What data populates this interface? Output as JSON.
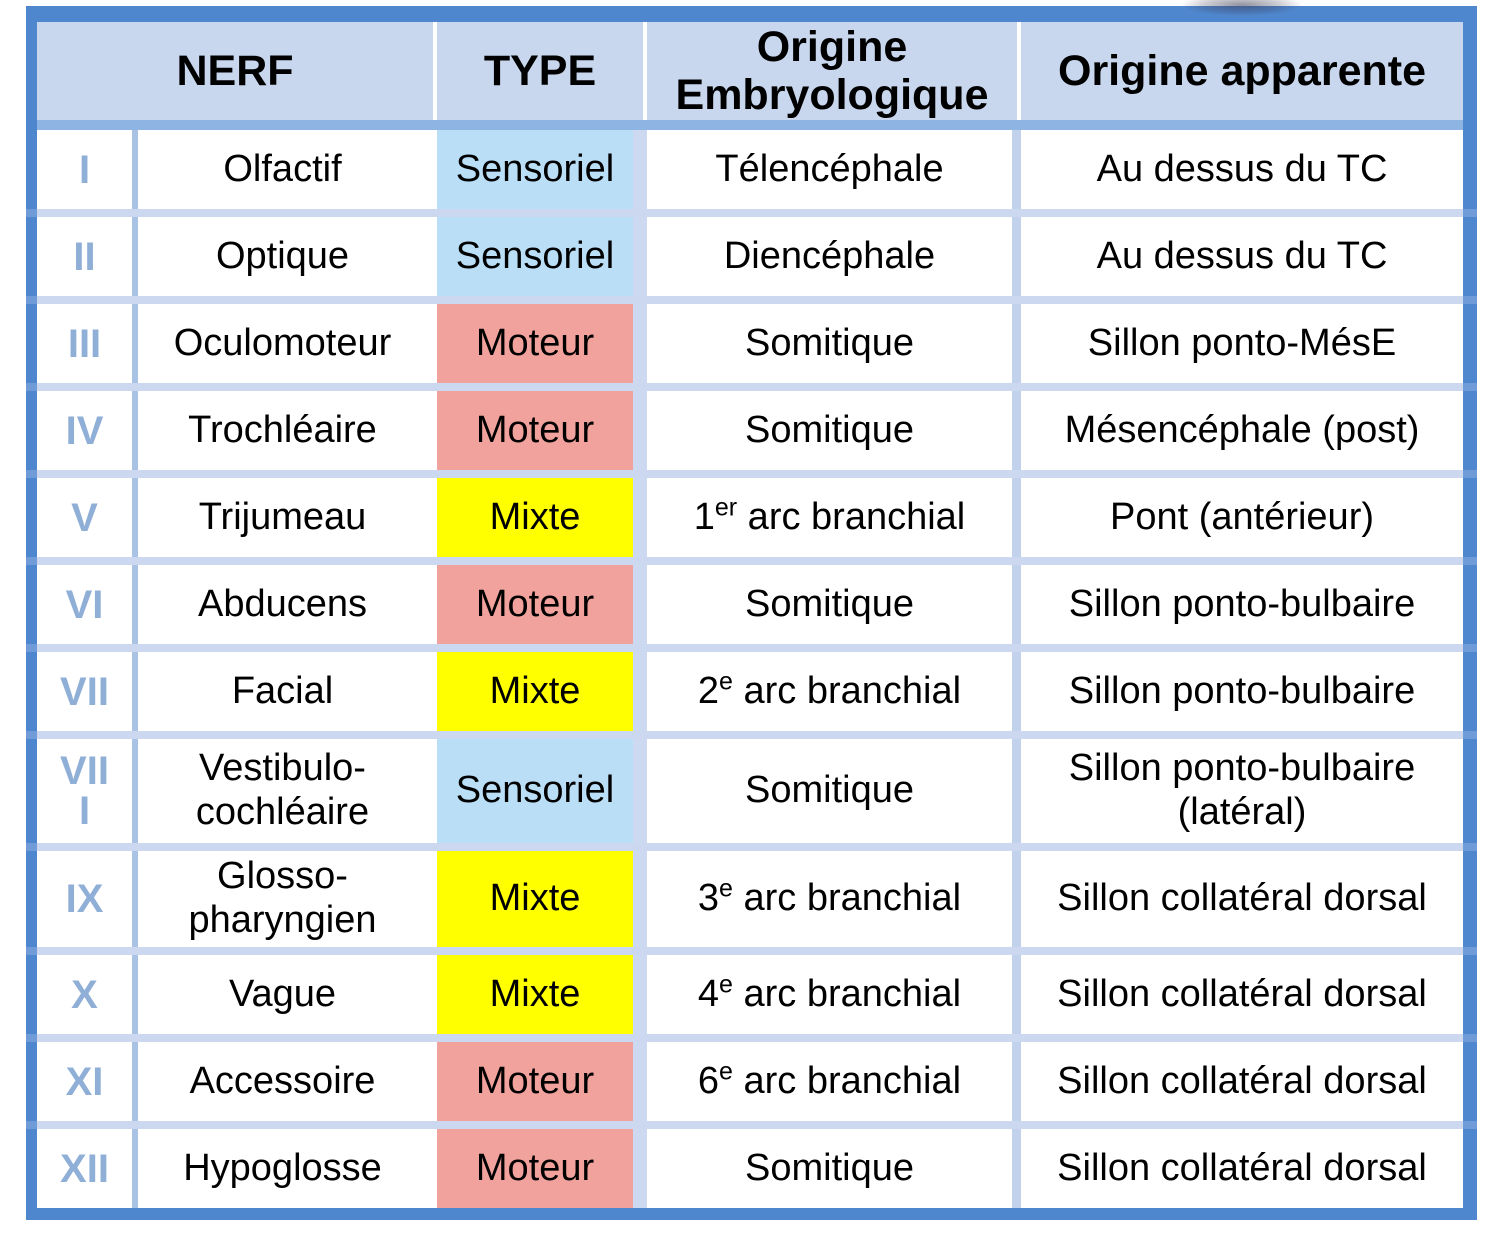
{
  "palette": {
    "outer_border": "#4f87ce",
    "header_bg": "#c8d6ee",
    "header_underline_band": "#8db4e2",
    "row_gap": "#cbd8ef",
    "numeral_column_divider": "#a9c3e5",
    "numeral_text": "#8fafd7",
    "type_sensoriel_bg": "#b9def6",
    "type_moteur_bg": "#f2a29c",
    "type_mixte_bg": "#ffff00",
    "cell_bg": "#ffffff",
    "text": "#000000"
  },
  "header": {
    "nerf": "NERF",
    "type": "TYPE",
    "origine_embryologique": "Origine Embryologique",
    "origine_apparente": "Origine apparente"
  },
  "rows": [
    {
      "numeral": "I",
      "nerf": "Olfactif",
      "type": "Sensoriel",
      "embryo": "Télencéphale",
      "apparente": "Au dessus du TC"
    },
    {
      "numeral": "II",
      "nerf": "Optique",
      "type": "Sensoriel",
      "embryo": "Diencéphale",
      "apparente": "Au dessus du TC"
    },
    {
      "numeral": "III",
      "nerf": "Oculomoteur",
      "type": "Moteur",
      "embryo": "Somitique",
      "apparente": "Sillon ponto-MésE"
    },
    {
      "numeral": "IV",
      "nerf": "Trochléaire",
      "type": "Moteur",
      "embryo": "Somitique",
      "apparente": "Mésencéphale (post)"
    },
    {
      "numeral": "V",
      "nerf": "Trijumeau",
      "type": "Mixte",
      "embryo_base": "1",
      "embryo_sup": "er",
      "embryo_rest": " arc branchial",
      "apparente": "Pont (antérieur)"
    },
    {
      "numeral": "VI",
      "nerf": "Abducens",
      "type": "Moteur",
      "embryo": "Somitique",
      "apparente": "Sillon ponto-bulbaire"
    },
    {
      "numeral": "VII",
      "nerf": "Facial",
      "type": "Mixte",
      "embryo_base": "2",
      "embryo_sup": "e",
      "embryo_rest": " arc branchial",
      "apparente": "Sillon ponto-bulbaire"
    },
    {
      "numeral": "VIII",
      "nerf": "Vestibulo-cochléaire",
      "type": "Sensoriel",
      "embryo": "Somitique",
      "apparente": "Sillon ponto-bulbaire (latéral)"
    },
    {
      "numeral": "IX",
      "nerf": "Glosso-pharyngien",
      "type": "Mixte",
      "embryo_base": "3",
      "embryo_sup": "e",
      "embryo_rest": " arc branchial",
      "apparente": "Sillon collatéral dorsal"
    },
    {
      "numeral": "X",
      "nerf": "Vague",
      "type": "Mixte",
      "embryo_base": "4",
      "embryo_sup": "e",
      "embryo_rest": " arc branchial",
      "apparente": "Sillon collatéral dorsal"
    },
    {
      "numeral": "XI",
      "nerf": "Accessoire",
      "type": "Moteur",
      "embryo_base": "6",
      "embryo_sup": "e",
      "embryo_rest": " arc branchial",
      "apparente": "Sillon collatéral dorsal"
    },
    {
      "numeral": "XII",
      "nerf": "Hypoglosse",
      "type": "Moteur",
      "embryo": "Somitique",
      "apparente": "Sillon collatéral dorsal"
    }
  ]
}
